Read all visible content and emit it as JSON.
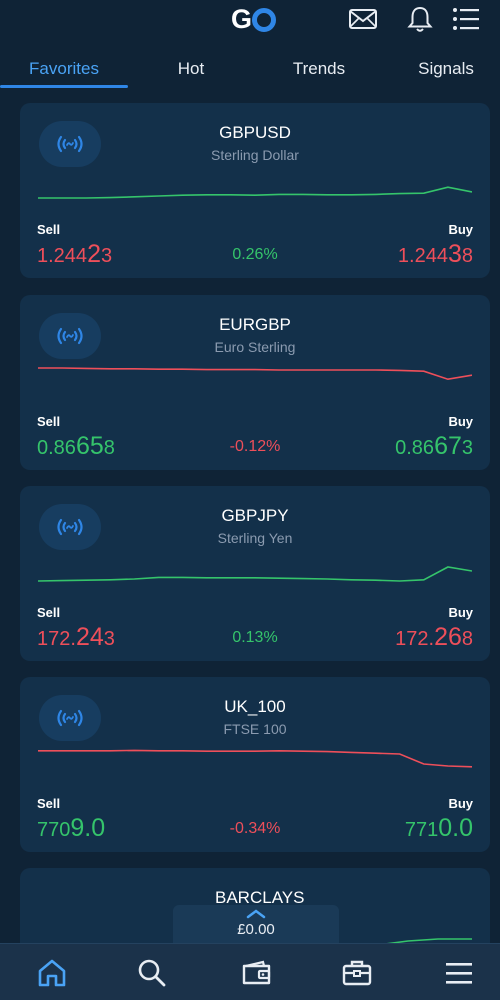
{
  "header": {
    "logo_text": "GO",
    "icons": [
      "mail-icon",
      "bell-icon",
      "menu-list-icon"
    ]
  },
  "tabs": [
    {
      "label": "Favorites",
      "active": true
    },
    {
      "label": "Hot",
      "active": false
    },
    {
      "label": "Trends",
      "active": false
    },
    {
      "label": "Signals",
      "active": false
    }
  ],
  "instruments": [
    {
      "symbol": "GBPUSD",
      "description": "Sterling Dollar",
      "sell_label": "Sell",
      "buy_label": "Buy",
      "sell_prefix": "1.244",
      "sell_big": "2",
      "sell_suffix": "3",
      "buy_prefix": "1.244",
      "buy_big": "3",
      "buy_suffix": "8",
      "change": "0.26%",
      "trend": "up",
      "spark": [
        0.25,
        0.25,
        0.25,
        0.26,
        0.28,
        0.3,
        0.32,
        0.33,
        0.33,
        0.32,
        0.34,
        0.34,
        0.33,
        0.33,
        0.34,
        0.36,
        0.37,
        0.52,
        0.4
      ]
    },
    {
      "symbol": "EURGBP",
      "description": "Euro  Sterling",
      "sell_label": "Sell",
      "buy_label": "Buy",
      "sell_prefix": "0.86",
      "sell_big": "65",
      "sell_suffix": "8",
      "buy_prefix": "0.86",
      "buy_big": "67",
      "buy_suffix": "3",
      "change": "-0.12%",
      "trend": "down",
      "spark": [
        0.8,
        0.8,
        0.79,
        0.78,
        0.78,
        0.77,
        0.77,
        0.76,
        0.76,
        0.76,
        0.75,
        0.75,
        0.75,
        0.75,
        0.75,
        0.74,
        0.72,
        0.52,
        0.62
      ]
    },
    {
      "symbol": "GBPJPY",
      "description": "Sterling Yen",
      "sell_label": "Sell",
      "buy_label": "Buy",
      "sell_prefix": "172.",
      "sell_big": "24",
      "sell_suffix": "3",
      "buy_prefix": "172.",
      "buy_big": "26",
      "buy_suffix": "8",
      "change": "0.13%",
      "trend": "up",
      "spark": [
        0.25,
        0.26,
        0.27,
        0.28,
        0.3,
        0.34,
        0.34,
        0.33,
        0.33,
        0.33,
        0.32,
        0.31,
        0.3,
        0.28,
        0.27,
        0.25,
        0.28,
        0.6,
        0.5
      ]
    },
    {
      "symbol": "UK_100",
      "description": "FTSE 100",
      "sell_label": "Sell",
      "buy_label": "Buy",
      "sell_prefix": "770",
      "sell_big": "9.0",
      "sell_suffix": "",
      "buy_prefix": "771",
      "buy_big": "0.0",
      "buy_suffix": "",
      "change": "-0.34%",
      "trend": "down",
      "spark": [
        0.78,
        0.78,
        0.78,
        0.78,
        0.79,
        0.78,
        0.78,
        0.77,
        0.77,
        0.77,
        0.78,
        0.77,
        0.76,
        0.74,
        0.72,
        0.7,
        0.45,
        0.4,
        0.38
      ]
    },
    {
      "symbol": "_BARCLAYS",
      "partial": true
    }
  ],
  "balance": {
    "amount": "£0.00"
  },
  "bottom_nav": [
    "home-icon",
    "search-icon",
    "wallet-icon",
    "portfolio-icon",
    "menu-icon"
  ],
  "colors": {
    "background": "#0f2336",
    "card": "#13304a",
    "accent": "#2f86e6",
    "up": "#35c46b",
    "down": "#ee4f5a"
  }
}
